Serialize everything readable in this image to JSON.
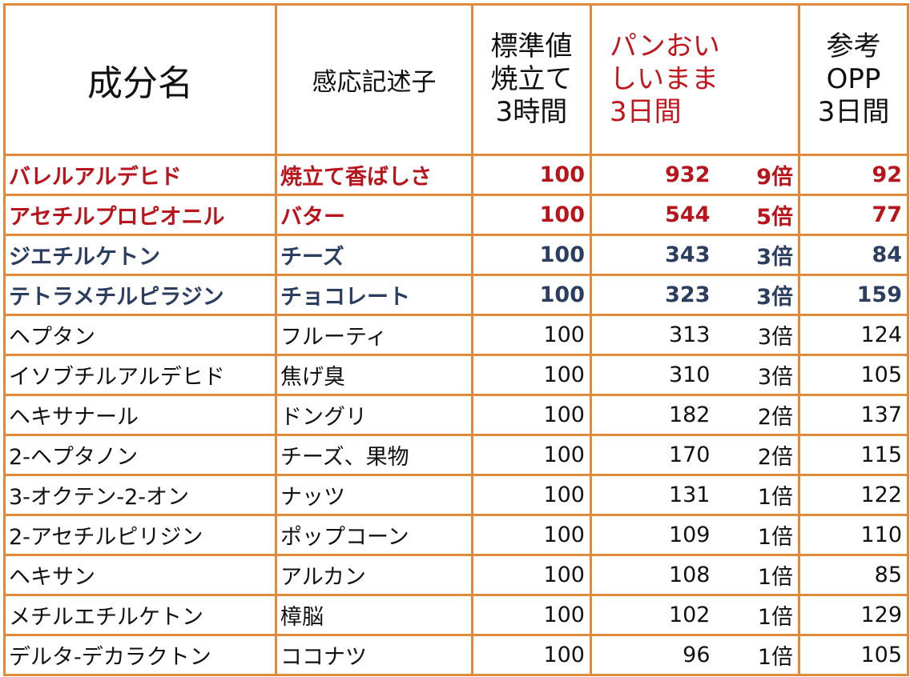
{
  "header": {
    "name": "成分名",
    "descriptor": "感応記述子",
    "standard": [
      "標準値",
      "焼立て",
      "3時間"
    ],
    "product": [
      "パンおい",
      "しいまま",
      "3日間"
    ],
    "reference": [
      "参考",
      "OPP",
      "3日間"
    ]
  },
  "rows": [
    {
      "name": "バレルアルデヒド",
      "descriptor": "焼立て香ばしさ",
      "standard": "100",
      "product": "932",
      "ratio": "9倍",
      "reference": "92",
      "style": "red"
    },
    {
      "name": "アセチルプロピオニル",
      "descriptor": "バター",
      "standard": "100",
      "product": "544",
      "ratio": "5倍",
      "reference": "77",
      "style": "red"
    },
    {
      "name": "ジエチルケトン",
      "descriptor": "チーズ",
      "standard": "100",
      "product": "343",
      "ratio": "3倍",
      "reference": "84",
      "style": "navy"
    },
    {
      "name": "テトラメチルピラジン",
      "descriptor": "チョコレート",
      "standard": "100",
      "product": "323",
      "ratio": "3倍",
      "reference": "159",
      "style": "navy"
    },
    {
      "name": "ヘプタン",
      "descriptor": "フルーティ",
      "standard": "100",
      "product": "313",
      "ratio": "3倍",
      "reference": "124",
      "style": "plain"
    },
    {
      "name": "イソブチルアルデヒド",
      "descriptor": "焦げ臭",
      "standard": "100",
      "product": "310",
      "ratio": "3倍",
      "reference": "105",
      "style": "plain"
    },
    {
      "name": "ヘキサナール",
      "descriptor": "ドングリ",
      "standard": "100",
      "product": "182",
      "ratio": "2倍",
      "reference": "137",
      "style": "plain"
    },
    {
      "name": "2-ヘプタノン",
      "descriptor": "チーズ、果物",
      "standard": "100",
      "product": "170",
      "ratio": "2倍",
      "reference": "115",
      "style": "plain"
    },
    {
      "name": "3-オクテン-2-オン",
      "descriptor": "ナッツ",
      "standard": "100",
      "product": "131",
      "ratio": "1倍",
      "reference": "122",
      "style": "plain"
    },
    {
      "name": "2-アセチルピリジン",
      "descriptor": "ポップコーン",
      "standard": "100",
      "product": "109",
      "ratio": "1倍",
      "reference": "110",
      "style": "plain"
    },
    {
      "name": "ヘキサン",
      "descriptor": "アルカン",
      "standard": "100",
      "product": "108",
      "ratio": "1倍",
      "reference": "85",
      "style": "plain"
    },
    {
      "name": "メチルエチルケトン",
      "descriptor": "樟脳",
      "standard": "100",
      "product": "102",
      "ratio": "1倍",
      "reference": "129",
      "style": "plain"
    },
    {
      "name": "デルタ-デカラクトン",
      "descriptor": "ココナツ",
      "standard": "100",
      "product": "96",
      "ratio": "1倍",
      "reference": "105",
      "style": "plain"
    }
  ],
  "colors": {
    "border": "#e08a3c",
    "highlight_red": "#b8141c",
    "highlight_navy": "#2c3e60",
    "text": "#111111"
  }
}
